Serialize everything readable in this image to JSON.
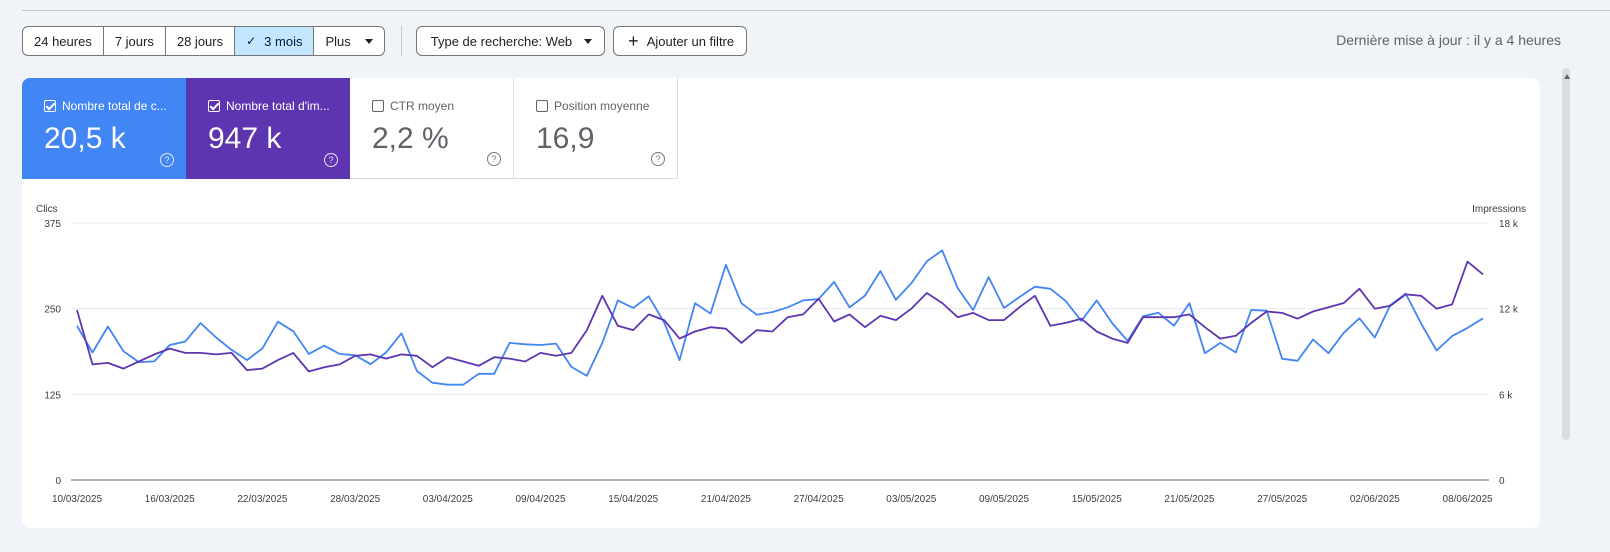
{
  "toolbar": {
    "ranges": [
      {
        "label": "24 heures",
        "active": false
      },
      {
        "label": "7 jours",
        "active": false
      },
      {
        "label": "28 jours",
        "active": false
      },
      {
        "label": "3 mois",
        "active": true
      },
      {
        "label": "Plus",
        "active": false
      }
    ],
    "search_type": "Type de recherche: Web",
    "add_filter": "Ajouter un filtre",
    "last_update": "Dernière mise à jour : il y a 4 heures"
  },
  "metrics": [
    {
      "label": "Nombre total de c...",
      "value": "20,5 k",
      "checked": true
    },
    {
      "label": "Nombre total d'im...",
      "value": "947 k",
      "checked": true
    },
    {
      "label": "CTR moyen",
      "value": "2,2 %",
      "checked": false
    },
    {
      "label": "Position moyenne",
      "value": "16,9",
      "checked": false
    }
  ],
  "colors": {
    "clicks": "#4285f4",
    "impressions": "#5e35b1"
  },
  "icons": {
    "check": "check-icon",
    "caret": "caret-down-icon",
    "plus": "plus-icon",
    "help": "help-circle-icon"
  },
  "chart_data": {
    "type": "line",
    "ylabel_left": "Clics",
    "ylabel_right": "Impressions",
    "y_left_range": [
      0,
      375
    ],
    "y_left_ticks": [
      "0",
      "125",
      "250",
      "375"
    ],
    "y_right_range": [
      0,
      18000
    ],
    "y_right_ticks": [
      "0",
      "6 k",
      "12 k",
      "18 k"
    ],
    "x_start": "10/03/2025",
    "x_tick_labels": [
      "10/03/2025",
      "16/03/2025",
      "22/03/2025",
      "28/03/2025",
      "03/04/2025",
      "09/04/2025",
      "15/04/2025",
      "21/04/2025",
      "27/04/2025",
      "03/05/2025",
      "09/05/2025",
      "15/05/2025",
      "21/05/2025",
      "27/05/2025",
      "02/06/2025",
      "08/06/2025"
    ],
    "grid": true,
    "series": [
      {
        "name": "Clics",
        "axis": "left",
        "color": "#4285f4",
        "values": [
          225,
          186,
          224,
          188,
          172,
          173,
          197,
          202,
          229,
          208,
          190,
          175,
          192,
          231,
          217,
          184,
          196,
          184,
          182,
          169,
          186,
          214,
          159,
          142,
          139,
          139,
          155,
          155,
          200,
          198,
          197,
          199,
          165,
          152,
          200,
          262,
          251,
          268,
          230,
          175,
          258,
          243,
          314,
          258,
          241,
          245,
          252,
          262,
          264,
          289,
          252,
          269,
          305,
          263,
          287,
          319,
          335,
          280,
          248,
          296,
          251,
          267,
          282,
          279,
          261,
          232,
          262,
          229,
          203,
          239,
          244,
          225,
          258,
          185,
          200,
          186,
          248,
          247,
          177,
          174,
          205,
          185,
          215,
          236,
          208,
          255,
          272,
          228,
          189,
          210,
          222,
          236
        ]
      },
      {
        "name": "Impressions",
        "axis": "right",
        "color": "#5e35b1",
        "values": [
          11900,
          8100,
          8200,
          7800,
          8300,
          8800,
          9200,
          8900,
          8900,
          8800,
          8900,
          7700,
          7800,
          8400,
          8900,
          7600,
          7900,
          8100,
          8700,
          8800,
          8500,
          8800,
          8700,
          7900,
          8600,
          8300,
          8000,
          8600,
          8500,
          8300,
          8900,
          8700,
          8900,
          10500,
          12900,
          10800,
          10500,
          11600,
          11200,
          9900,
          10400,
          10700,
          10600,
          9600,
          10500,
          10400,
          11400,
          11600,
          12700,
          11100,
          11600,
          10700,
          11500,
          11200,
          12000,
          13100,
          12400,
          11400,
          11700,
          11200,
          11200,
          12100,
          12900,
          10800,
          11000,
          11300,
          10400,
          9900,
          9600,
          11400,
          11400,
          11400,
          11600,
          10700,
          9900,
          10100,
          11000,
          11800,
          11700,
          11300,
          11800,
          12100,
          12400,
          13400,
          12000,
          12200,
          13000,
          12900,
          12000,
          12300,
          15300,
          14400
        ]
      }
    ]
  }
}
